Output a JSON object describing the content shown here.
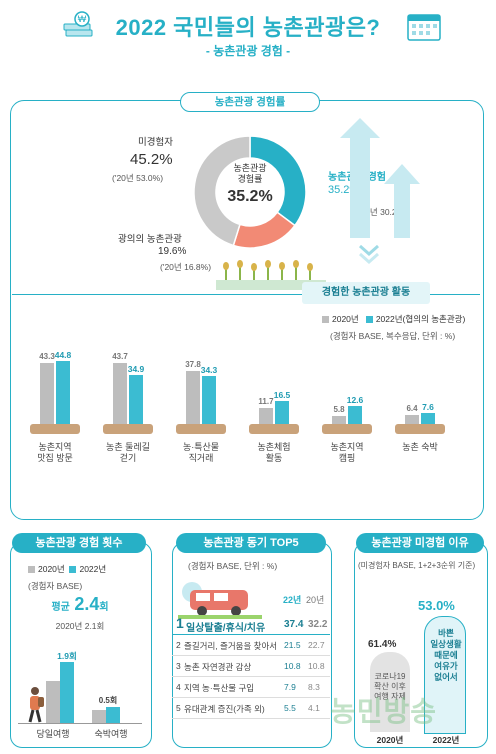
{
  "header": {
    "title": "2022 국민들의 농촌관광은?",
    "subtitle": "- 농촌관광 경험 -"
  },
  "experience_rate": {
    "pill": "농촌관광 경험률",
    "center_label": "농촌관광\n경험률",
    "center_value": "35.2%",
    "non_exp_label": "미경험자",
    "non_exp_value": "45.2%",
    "non_exp_prev": "('20년 53.0%)",
    "exp_label": "농촌관광 경험",
    "exp_value": "35.2%",
    "exp_prev": "('20년 30.2%)",
    "broad_label": "광의의 농촌관광",
    "broad_value": "19.6%",
    "broad_prev": "('20년 16.8%)",
    "banner": "경험한 농촌관광 활동"
  },
  "activities": {
    "legend_2020": "2020년",
    "legend_2022": "2022년(협의의 농촌관광)",
    "note": "(경험자 BASE, 복수응답, 단위 : %)"
  },
  "freq": {
    "pill": "농촌관광 경험 횟수",
    "legend_2020": "2020년",
    "legend_2022": "2022년",
    "base": "(경험자 BASE)",
    "avg_label": "평균",
    "avg_value": "2.4",
    "avg_unit": "회",
    "avg_prev": "2020년 2.1회",
    "day_value": "1.9회",
    "stay_value": "0.5회",
    "day_label": "당일여행",
    "stay_label": "숙박여행"
  },
  "motive": {
    "pill": "농촌관광 동기 TOP5",
    "base": "(경험자 BASE, 단위 : %)",
    "col_22": "22년",
    "col_20": "20년",
    "rows": [
      {
        "rank": "1",
        "label": "일상탈출/휴식/치유",
        "v22": "37.4",
        "v20": "32.2"
      },
      {
        "rank": "2",
        "label": "즐길거리, 즐거움을 찾아서",
        "v22": "21.5",
        "v20": "22.7"
      },
      {
        "rank": "3",
        "label": "농촌 자연경관 감상",
        "v22": "10.8",
        "v20": "10.8"
      },
      {
        "rank": "4",
        "label": "지역 농·특산물 구입",
        "v22": "7.9",
        "v20": "8.3"
      },
      {
        "rank": "5",
        "label": "유대관계 증진(가족 외)",
        "v22": "5.5",
        "v20": "4.1"
      }
    ]
  },
  "reason": {
    "pill": "농촌관광 미경험 이유",
    "base": "(미경험자 BASE, 1+2+3순위 기준)",
    "v2022": "53.0%",
    "v2020": "61.4%",
    "label_2022": "바쁜\n일상생활\n때문에\n여유가\n없어서",
    "label_2020": "코로나19\n확산 이후\n여행 자제",
    "year_2020": "2020년",
    "year_2022": "2022년"
  },
  "watermark": "농민방송",
  "colors": {
    "accent": "#27b0c6",
    "gray": "#bdbdbd",
    "salmon": "#f28a75",
    "teal_bar": "#3bbcd2"
  },
  "chart_data": [
    {
      "type": "pie",
      "title": "농촌관광 경험률",
      "slices": [
        {
          "label": "농촌관광 경험",
          "value": 35.2,
          "color": "#27b0c6"
        },
        {
          "label": "광의의 농촌관광",
          "value": 19.6,
          "color": "#f28a75"
        },
        {
          "label": "미경험자",
          "value": 45.2,
          "color": "#c9c9c9"
        }
      ]
    },
    {
      "type": "bar",
      "title": "경험한 농촌관광 활동",
      "categories": [
        "농촌지역\n맛집 방문",
        "농촌 둘레길\n걷기",
        "농·특산물\n직거래",
        "농촌체험\n활동",
        "농촌지역\n캠핑",
        "농촌 숙박"
      ],
      "series": [
        {
          "name": "2020년",
          "values": [
            43.3,
            43.7,
            37.8,
            11.7,
            5.8,
            6.4
          ]
        },
        {
          "name": "2022년(협의의 농촌관광)",
          "values": [
            44.8,
            34.9,
            34.3,
            16.5,
            12.6,
            7.6
          ]
        }
      ],
      "ylim": [
        0,
        50
      ]
    },
    {
      "type": "bar",
      "title": "농촌관광 경험 횟수",
      "categories": [
        "당일여행",
        "숙박여행"
      ],
      "series": [
        {
          "name": "2022년",
          "values": [
            1.9,
            0.5
          ]
        }
      ],
      "ylim": [
        0,
        2.5
      ]
    },
    {
      "type": "bar",
      "title": "농촌관광 미경험 이유",
      "categories": [
        "2020년",
        "2022년"
      ],
      "values": [
        61.4,
        53.0
      ],
      "ylim": [
        0,
        70
      ]
    }
  ]
}
